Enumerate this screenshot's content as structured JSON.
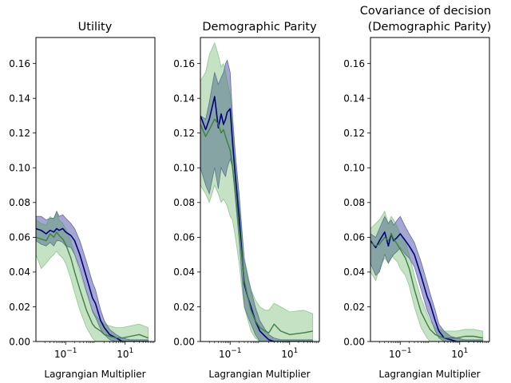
{
  "chart_data": [
    {
      "type": "line",
      "title_lines": [
        "Utility"
      ],
      "xlabel": "Lagrangian Multiplier",
      "ylabel": "",
      "xscale": "log",
      "xlim": [
        0.01,
        100
      ],
      "ylim": [
        0,
        0.175
      ],
      "x_ticks": [
        {
          "value": 0.1,
          "base": "10",
          "exp": "−1"
        },
        {
          "value": 10,
          "base": "10",
          "exp": "1"
        }
      ],
      "y_ticks": [
        "0.00",
        "0.02",
        "0.04",
        "0.06",
        "0.08",
        "0.10",
        "0.12",
        "0.14",
        "0.16"
      ],
      "series": [
        {
          "color": "#00007f",
          "fill": "#00007f",
          "x": [
            0.01,
            0.015,
            0.022,
            0.03,
            0.04,
            0.05,
            0.06,
            0.08,
            0.1,
            0.15,
            0.2,
            0.3,
            0.5,
            0.8,
            1.0,
            1.5,
            2.0,
            3.0,
            5.0,
            8.0,
            15.0,
            30.0,
            60.0
          ],
          "y": [
            0.065,
            0.064,
            0.062,
            0.064,
            0.063,
            0.065,
            0.064,
            0.065,
            0.063,
            0.061,
            0.058,
            0.05,
            0.037,
            0.025,
            0.022,
            0.012,
            0.008,
            0.004,
            0.002,
            0.0,
            0.0,
            0.0,
            0.0
          ],
          "upper": [
            0.072,
            0.072,
            0.07,
            0.071,
            0.071,
            0.075,
            0.072,
            0.073,
            0.071,
            0.068,
            0.065,
            0.058,
            0.046,
            0.034,
            0.03,
            0.018,
            0.012,
            0.007,
            0.004,
            0.002,
            0.001,
            0.001,
            0.001
          ],
          "lower": [
            0.058,
            0.056,
            0.055,
            0.057,
            0.055,
            0.058,
            0.058,
            0.057,
            0.055,
            0.054,
            0.05,
            0.042,
            0.029,
            0.017,
            0.014,
            0.007,
            0.004,
            0.001,
            0.0,
            0.0,
            0.0,
            0.0,
            0.0
          ]
        },
        {
          "color": "#3f7f3f",
          "fill": "#3f9f3f",
          "x": [
            0.01,
            0.015,
            0.022,
            0.03,
            0.04,
            0.05,
            0.06,
            0.08,
            0.1,
            0.15,
            0.2,
            0.3,
            0.5,
            0.8,
            1.0,
            1.5,
            2.0,
            3.0,
            5.0,
            8.0,
            15.0,
            30.0,
            60.0
          ],
          "y": [
            0.06,
            0.059,
            0.058,
            0.062,
            0.06,
            0.063,
            0.061,
            0.059,
            0.056,
            0.048,
            0.04,
            0.03,
            0.018,
            0.01,
            0.008,
            0.006,
            0.004,
            0.003,
            0.002,
            0.002,
            0.003,
            0.004,
            0.002
          ],
          "upper": [
            0.07,
            0.068,
            0.067,
            0.072,
            0.07,
            0.075,
            0.07,
            0.068,
            0.065,
            0.058,
            0.05,
            0.04,
            0.028,
            0.018,
            0.015,
            0.012,
            0.01,
            0.009,
            0.008,
            0.008,
            0.009,
            0.01,
            0.008
          ],
          "lower": [
            0.05,
            0.042,
            0.045,
            0.048,
            0.05,
            0.052,
            0.05,
            0.048,
            0.045,
            0.036,
            0.028,
            0.018,
            0.008,
            0.002,
            0.0,
            0.0,
            0.0,
            0.0,
            0.0,
            0.0,
            0.0,
            0.0,
            0.0
          ]
        }
      ]
    },
    {
      "type": "line",
      "title_lines": [
        "Demographic Parity"
      ],
      "xlabel": "Lagrangian Multiplier",
      "ylabel": "",
      "xscale": "log",
      "xlim": [
        0.01,
        100
      ],
      "ylim": [
        0,
        0.175
      ],
      "x_ticks": [
        {
          "value": 0.1,
          "base": "10",
          "exp": "−1"
        },
        {
          "value": 10,
          "base": "10",
          "exp": "1"
        }
      ],
      "y_ticks": [
        "0.00",
        "0.02",
        "0.04",
        "0.06",
        "0.08",
        "0.10",
        "0.12",
        "0.14",
        "0.16"
      ],
      "series": [
        {
          "color": "#00007f",
          "fill": "#00007f",
          "x": [
            0.01,
            0.015,
            0.02,
            0.03,
            0.04,
            0.05,
            0.06,
            0.07,
            0.08,
            0.1,
            0.12,
            0.15,
            0.2,
            0.25,
            0.3,
            0.4,
            0.5,
            0.7,
            1.0,
            1.5,
            2.0,
            3.0,
            5.0,
            10.0,
            30.0,
            60.0
          ],
          "y": [
            0.13,
            0.122,
            0.128,
            0.141,
            0.123,
            0.131,
            0.125,
            0.128,
            0.132,
            0.134,
            0.115,
            0.095,
            0.072,
            0.05,
            0.033,
            0.025,
            0.02,
            0.012,
            0.006,
            0.003,
            0.001,
            0.0,
            0.0,
            0.0,
            0.0,
            0.0
          ],
          "upper": [
            0.13,
            0.128,
            0.138,
            0.155,
            0.148,
            0.152,
            0.155,
            0.16,
            0.162,
            0.155,
            0.13,
            0.108,
            0.085,
            0.064,
            0.047,
            0.036,
            0.03,
            0.02,
            0.012,
            0.007,
            0.004,
            0.002,
            0.001,
            0.001,
            0.001,
            0.001
          ],
          "lower": [
            0.1,
            0.09,
            0.085,
            0.1,
            0.088,
            0.1,
            0.097,
            0.095,
            0.1,
            0.105,
            0.1,
            0.082,
            0.058,
            0.036,
            0.02,
            0.014,
            0.01,
            0.004,
            0.0,
            0.0,
            0.0,
            0.0,
            0.0,
            0.0,
            0.0,
            0.0
          ]
        },
        {
          "color": "#3f7f3f",
          "fill": "#3f9f3f",
          "x": [
            0.01,
            0.015,
            0.02,
            0.03,
            0.04,
            0.05,
            0.06,
            0.07,
            0.08,
            0.1,
            0.12,
            0.15,
            0.2,
            0.25,
            0.3,
            0.4,
            0.5,
            0.7,
            1.0,
            1.5,
            2.0,
            3.0,
            5.0,
            10.0,
            30.0,
            60.0
          ],
          "y": [
            0.125,
            0.118,
            0.122,
            0.128,
            0.125,
            0.12,
            0.122,
            0.118,
            0.115,
            0.11,
            0.1,
            0.085,
            0.065,
            0.048,
            0.035,
            0.025,
            0.018,
            0.012,
            0.008,
            0.006,
            0.005,
            0.01,
            0.006,
            0.004,
            0.005,
            0.006
          ],
          "upper": [
            0.15,
            0.155,
            0.165,
            0.172,
            0.165,
            0.158,
            0.16,
            0.155,
            0.15,
            0.142,
            0.125,
            0.105,
            0.082,
            0.062,
            0.048,
            0.038,
            0.03,
            0.024,
            0.02,
            0.018,
            0.018,
            0.022,
            0.02,
            0.017,
            0.018,
            0.016
          ],
          "lower": [
            0.09,
            0.085,
            0.08,
            0.09,
            0.085,
            0.08,
            0.082,
            0.08,
            0.078,
            0.072,
            0.07,
            0.06,
            0.045,
            0.03,
            0.02,
            0.012,
            0.006,
            0.002,
            0.0,
            0.0,
            0.0,
            0.0,
            0.0,
            0.0,
            0.0,
            0.0
          ]
        }
      ]
    },
    {
      "type": "line",
      "title_lines": [
        "Covariance of decision",
        "(Demographic Parity)"
      ],
      "xlabel": "Lagrangian Multiplier",
      "ylabel": "",
      "xscale": "log",
      "xlim": [
        0.01,
        100
      ],
      "ylim": [
        0,
        0.175
      ],
      "x_ticks": [
        {
          "value": 0.1,
          "base": "10",
          "exp": "−1"
        },
        {
          "value": 10,
          "base": "10",
          "exp": "1"
        }
      ],
      "y_ticks": [
        "0.00",
        "0.02",
        "0.04",
        "0.06",
        "0.08",
        "0.10",
        "0.12",
        "0.14",
        "0.16"
      ],
      "series": [
        {
          "color": "#00007f",
          "fill": "#00007f",
          "x": [
            0.01,
            0.015,
            0.02,
            0.03,
            0.04,
            0.05,
            0.06,
            0.08,
            0.1,
            0.15,
            0.2,
            0.3,
            0.5,
            0.8,
            1.0,
            1.5,
            2.0,
            3.0,
            5.0,
            8.0,
            15.0,
            30.0,
            60.0
          ],
          "y": [
            0.058,
            0.054,
            0.058,
            0.063,
            0.055,
            0.062,
            0.058,
            0.06,
            0.062,
            0.058,
            0.055,
            0.05,
            0.038,
            0.026,
            0.022,
            0.012,
            0.006,
            0.002,
            0.001,
            0.0,
            0.0,
            0.0,
            0.0
          ],
          "upper": [
            0.062,
            0.06,
            0.065,
            0.072,
            0.068,
            0.07,
            0.067,
            0.07,
            0.072,
            0.066,
            0.062,
            0.057,
            0.046,
            0.034,
            0.028,
            0.018,
            0.01,
            0.006,
            0.003,
            0.002,
            0.001,
            0.001,
            0.001
          ],
          "lower": [
            0.045,
            0.038,
            0.04,
            0.05,
            0.045,
            0.048,
            0.05,
            0.052,
            0.054,
            0.05,
            0.048,
            0.043,
            0.03,
            0.018,
            0.014,
            0.006,
            0.002,
            0.0,
            0.0,
            0.0,
            0.0,
            0.0,
            0.0
          ]
        },
        {
          "color": "#3f7f3f",
          "fill": "#3f9f3f",
          "x": [
            0.01,
            0.015,
            0.02,
            0.03,
            0.04,
            0.05,
            0.06,
            0.08,
            0.1,
            0.15,
            0.2,
            0.3,
            0.5,
            0.8,
            1.0,
            1.5,
            2.0,
            3.0,
            5.0,
            8.0,
            15.0,
            30.0,
            60.0
          ],
          "y": [
            0.057,
            0.055,
            0.056,
            0.06,
            0.058,
            0.062,
            0.059,
            0.056,
            0.053,
            0.048,
            0.042,
            0.03,
            0.017,
            0.01,
            0.007,
            0.004,
            0.003,
            0.002,
            0.002,
            0.002,
            0.003,
            0.003,
            0.002
          ],
          "upper": [
            0.065,
            0.068,
            0.07,
            0.075,
            0.068,
            0.072,
            0.07,
            0.066,
            0.062,
            0.057,
            0.05,
            0.038,
            0.025,
            0.016,
            0.012,
            0.008,
            0.007,
            0.006,
            0.006,
            0.006,
            0.007,
            0.007,
            0.006
          ],
          "lower": [
            0.04,
            0.035,
            0.042,
            0.048,
            0.045,
            0.05,
            0.048,
            0.046,
            0.042,
            0.038,
            0.032,
            0.02,
            0.008,
            0.002,
            0.0,
            0.0,
            0.0,
            0.0,
            0.0,
            0.0,
            0.0,
            0.0,
            0.0
          ]
        }
      ]
    }
  ]
}
